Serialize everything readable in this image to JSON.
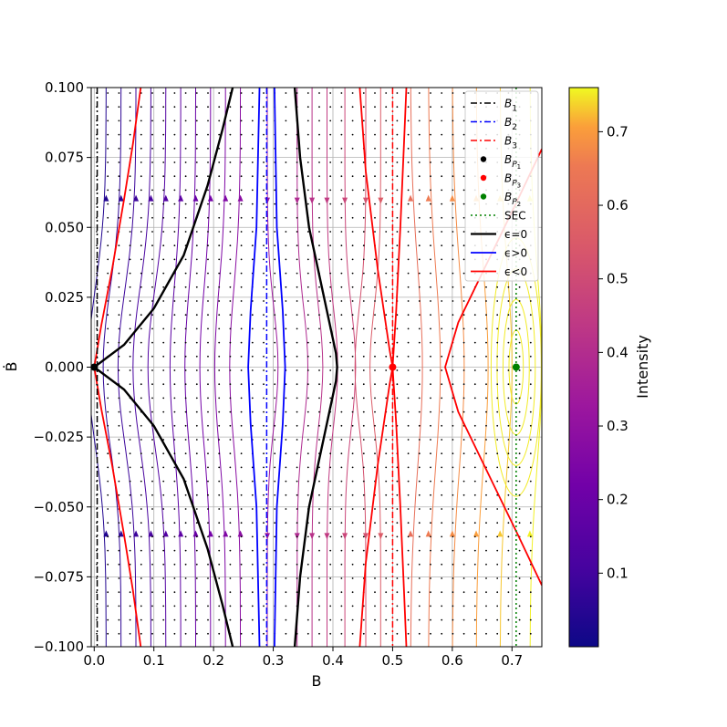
{
  "chart_data": {
    "type": "streamplot",
    "xlabel": "B",
    "ylabel": "Ḃ",
    "xlim": [
      -0.005,
      0.75
    ],
    "ylim": [
      -0.1,
      0.1
    ],
    "xticks": [
      0.0,
      0.1,
      0.2,
      0.3,
      0.4,
      0.5,
      0.6,
      0.7
    ],
    "xtick_labels": [
      "0.0",
      "0.1",
      "0.2",
      "0.3",
      "0.4",
      "0.5",
      "0.6",
      "0.7"
    ],
    "yticks": [
      -0.1,
      -0.075,
      -0.05,
      -0.025,
      0.0,
      0.025,
      0.05,
      0.075,
      0.1
    ],
    "ytick_labels": [
      "−0.100",
      "−0.075",
      "−0.050",
      "−0.025",
      "0.000",
      "0.025",
      "0.050",
      "0.075",
      "0.100"
    ],
    "grid": true,
    "legend_position": "top-right",
    "colorbar": {
      "label": "Intensity",
      "range": [
        0.0,
        0.76
      ],
      "ticks": [
        0.1,
        0.2,
        0.3,
        0.4,
        0.5,
        0.6,
        0.7
      ],
      "tick_labels": [
        "0.1",
        "0.2",
        "0.3",
        "0.4",
        "0.5",
        "0.6",
        "0.7"
      ],
      "colormap": "plasma"
    },
    "vertical_lines": [
      {
        "name": "B1",
        "x": 0.005,
        "color": "#000000",
        "style": "dashdot"
      },
      {
        "name": "B2",
        "x": 0.289,
        "color": "#0000ff",
        "style": "dashdot"
      },
      {
        "name": "B3",
        "x": 0.5,
        "color": "#ff0000",
        "style": "dashdot"
      },
      {
        "name": "SEC",
        "x": 0.707,
        "color": "#008000",
        "style": "dotted"
      }
    ],
    "points": [
      {
        "name": "BP1",
        "x": 0.0,
        "y": 0.0,
        "color": "#000000"
      },
      {
        "name": "BP3",
        "x": 0.5,
        "y": 0.0,
        "color": "#ff0000"
      },
      {
        "name": "BP2",
        "x": 0.707,
        "y": 0.0,
        "color": "#008000"
      }
    ],
    "contours": [
      {
        "name": "eps_zero_left",
        "color": "#000000",
        "width": 2.4,
        "points": [
          [
            0.0,
            0.0
          ],
          [
            0.05,
            0.008
          ],
          [
            0.1,
            0.021
          ],
          [
            0.15,
            0.04
          ],
          [
            0.19,
            0.065
          ],
          [
            0.215,
            0.085
          ],
          [
            0.232,
            0.1
          ]
        ]
      },
      {
        "name": "eps_zero_left_lower",
        "color": "#000000",
        "width": 2.4,
        "points": [
          [
            0.0,
            0.0
          ],
          [
            0.05,
            -0.008
          ],
          [
            0.1,
            -0.021
          ],
          [
            0.15,
            -0.04
          ],
          [
            0.19,
            -0.065
          ],
          [
            0.215,
            -0.085
          ],
          [
            0.232,
            -0.1
          ]
        ]
      },
      {
        "name": "eps_zero_right",
        "color": "#000000",
        "width": 2.4,
        "points": [
          [
            0.336,
            0.1
          ],
          [
            0.345,
            0.075
          ],
          [
            0.36,
            0.05
          ],
          [
            0.385,
            0.025
          ],
          [
            0.405,
            0.005
          ],
          [
            0.407,
            0.0
          ],
          [
            0.405,
            -0.005
          ],
          [
            0.385,
            -0.025
          ],
          [
            0.36,
            -0.05
          ],
          [
            0.345,
            -0.075
          ],
          [
            0.336,
            -0.1
          ]
        ]
      },
      {
        "name": "eps_pos_left",
        "color": "#0000ff",
        "width": 1.8,
        "points": [
          [
            0.277,
            0.1
          ],
          [
            0.272,
            0.05
          ],
          [
            0.262,
            0.02
          ],
          [
            0.258,
            0.0
          ],
          [
            0.262,
            -0.02
          ],
          [
            0.272,
            -0.05
          ],
          [
            0.277,
            -0.1
          ]
        ]
      },
      {
        "name": "eps_pos_right",
        "color": "#0000ff",
        "width": 1.8,
        "points": [
          [
            0.302,
            0.1
          ],
          [
            0.306,
            0.05
          ],
          [
            0.316,
            0.02
          ],
          [
            0.32,
            0.0
          ],
          [
            0.316,
            -0.02
          ],
          [
            0.306,
            -0.05
          ],
          [
            0.302,
            -0.1
          ]
        ]
      },
      {
        "name": "eps_neg_left_upper",
        "color": "#ff0000",
        "width": 1.8,
        "points": [
          [
            0.0,
            0.0
          ],
          [
            0.012,
            0.015
          ],
          [
            0.03,
            0.035
          ],
          [
            0.05,
            0.06
          ],
          [
            0.065,
            0.08
          ],
          [
            0.078,
            0.1
          ]
        ]
      },
      {
        "name": "eps_neg_left_lower",
        "color": "#ff0000",
        "width": 1.8,
        "points": [
          [
            0.0,
            0.0
          ],
          [
            0.012,
            -0.015
          ],
          [
            0.03,
            -0.035
          ],
          [
            0.05,
            -0.06
          ],
          [
            0.065,
            -0.08
          ],
          [
            0.078,
            -0.1
          ]
        ]
      },
      {
        "name": "eps_neg_mid",
        "color": "#ff0000",
        "width": 1.8,
        "points": [
          [
            0.445,
            0.1
          ],
          [
            0.455,
            0.07
          ],
          [
            0.475,
            0.035
          ],
          [
            0.495,
            0.006
          ],
          [
            0.5,
            0.0
          ],
          [
            0.495,
            -0.006
          ],
          [
            0.475,
            -0.035
          ],
          [
            0.455,
            -0.07
          ],
          [
            0.445,
            -0.1
          ]
        ]
      },
      {
        "name": "eps_neg_mid_right",
        "color": "#ff0000",
        "width": 1.8,
        "points": [
          [
            0.5,
            0.0
          ],
          [
            0.506,
            0.02
          ],
          [
            0.513,
            0.05
          ],
          [
            0.519,
            0.08
          ],
          [
            0.523,
            0.1
          ]
        ]
      },
      {
        "name": "eps_neg_mid_right_lower",
        "color": "#ff0000",
        "width": 1.8,
        "points": [
          [
            0.5,
            0.0
          ],
          [
            0.506,
            -0.02
          ],
          [
            0.513,
            -0.05
          ],
          [
            0.519,
            -0.08
          ],
          [
            0.523,
            -0.1
          ]
        ]
      },
      {
        "name": "eps_neg_right",
        "color": "#ff0000",
        "width": 1.8,
        "points": [
          [
            0.75,
            0.078
          ],
          [
            0.71,
            0.06
          ],
          [
            0.66,
            0.038
          ],
          [
            0.61,
            0.016
          ],
          [
            0.588,
            0.0
          ],
          [
            0.61,
            -0.016
          ],
          [
            0.66,
            -0.038
          ],
          [
            0.71,
            -0.06
          ],
          [
            0.75,
            -0.078
          ]
        ]
      }
    ],
    "legend_entries": [
      {
        "label": "B",
        "sub": "1",
        "kind": "line",
        "color": "#000000",
        "style": "dashdot"
      },
      {
        "label": "B",
        "sub": "2",
        "kind": "line",
        "color": "#0000ff",
        "style": "dashdot"
      },
      {
        "label": "B",
        "sub": "3",
        "kind": "line",
        "color": "#ff0000",
        "style": "dashdot"
      },
      {
        "label": "B",
        "sub": "P",
        "subsub": "1",
        "kind": "dot",
        "color": "#000000"
      },
      {
        "label": "B",
        "sub": "P",
        "subsub": "3",
        "kind": "dot",
        "color": "#ff0000"
      },
      {
        "label": "B",
        "sub": "P",
        "subsub": "2",
        "kind": "dot",
        "color": "#008000"
      },
      {
        "label": "SEC",
        "kind": "line",
        "color": "#008000",
        "style": "dotted"
      },
      {
        "label": "ϵ=0",
        "kind": "line",
        "color": "#000000",
        "style": "solid",
        "width": 2.2
      },
      {
        "label": "ϵ>0",
        "kind": "line",
        "color": "#0000ff",
        "style": "solid",
        "width": 1.8
      },
      {
        "label": "ϵ<0",
        "kind": "line",
        "color": "#ff0000",
        "style": "solid",
        "width": 1.8
      }
    ]
  }
}
